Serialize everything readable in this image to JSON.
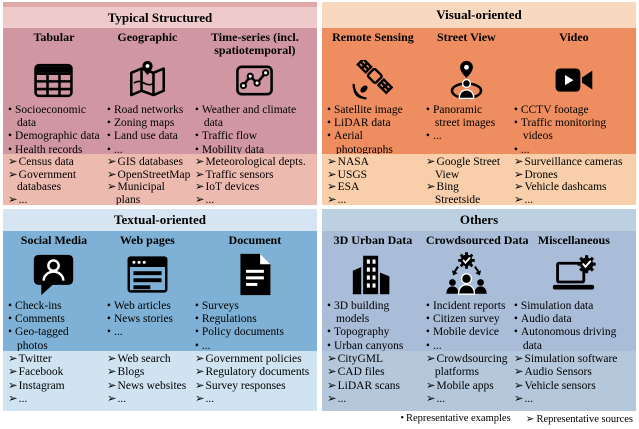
{
  "markers": {
    "example": "•",
    "source": "➢"
  },
  "legend": {
    "examples_label": "Representative examples",
    "sources_label": "Representative sources"
  },
  "quadrants": [
    {
      "id": "typical-structured",
      "title": "Typical Structured",
      "colors": {
        "header": "#eecaca",
        "header_top": "#dfa9a9",
        "body": "#d097a3",
        "sources": "#edbab0"
      },
      "columns": [
        {
          "title": "Tabular",
          "icon": "table-icon",
          "examples": [
            "Socioeconomic data",
            "Demographic data",
            "Health records",
            "..."
          ],
          "sources": [
            "Census data",
            "Government databases",
            "..."
          ]
        },
        {
          "title": "Geographic",
          "icon": "folded-map-icon",
          "examples": [
            "Road networks",
            "Zoning maps",
            "Land use data",
            "..."
          ],
          "sources": [
            "GIS databases",
            "OpenStreetMap",
            "Municipal plans",
            "..."
          ]
        },
        {
          "title": "Time-series (incl. spatiotemporal)",
          "icon": "line-chart-icon",
          "examples": [
            "Weather and climate data",
            "Traffic flow",
            "Mobility data",
            "..."
          ],
          "sources": [
            "Meteorological depts.",
            "Traffic sensors",
            "IoT devices",
            "..."
          ]
        }
      ]
    },
    {
      "id": "visual-oriented",
      "title": "Visual-oriented",
      "colors": {
        "header": "#f9d8c0",
        "body": "#ed8d60",
        "sources": "#f8cfaa"
      },
      "columns": [
        {
          "title": "Remote Sensing",
          "icon": "satellite-icon",
          "examples": [
            "Satellite image",
            "LiDAR data",
            "Aerial photographs",
            "..."
          ],
          "sources": [
            "NASA",
            "USGS",
            "ESA",
            "..."
          ]
        },
        {
          "title": "Street View",
          "icon": "street-view-pin-icon",
          "examples": [
            "Panoramic street images",
            "..."
          ],
          "sources": [
            "Google Street View",
            "Bing Streetside",
            "..."
          ]
        },
        {
          "title": "Video",
          "icon": "video-camera-icon",
          "examples": [
            "CCTV footage",
            "Traffic monitoring videos",
            "..."
          ],
          "sources": [
            "Surveillance cameras",
            "Drones",
            "Vehicle dashcams",
            "..."
          ]
        }
      ]
    },
    {
      "id": "textual-oriented",
      "title": "Textual-oriented",
      "colors": {
        "header": "#d6e5f1",
        "body": "#7eb1d5",
        "sources": "#cfe3f1"
      },
      "columns": [
        {
          "title": "Social Media",
          "icon": "chat-person-icon",
          "examples": [
            "Check-ins",
            "Comments",
            "Geo-tagged photos",
            "..."
          ],
          "sources": [
            "Twitter",
            "Facebook",
            "Instagram",
            "..."
          ]
        },
        {
          "title": "Web pages",
          "icon": "browser-window-icon",
          "examples": [
            "Web articles",
            "News stories",
            "..."
          ],
          "sources": [
            "Web search",
            "Blogs",
            "News websites",
            "..."
          ]
        },
        {
          "title": "Document",
          "icon": "document-icon",
          "examples": [
            "Surveys",
            "Regulations",
            "Policy documents",
            "..."
          ],
          "sources": [
            "Government policies",
            "Regulatory documents",
            "Survey responses",
            "..."
          ]
        }
      ]
    },
    {
      "id": "others",
      "title": "Others",
      "colors": {
        "header": "#bdd0e2",
        "body": "#a9bcd8",
        "sources": "#b4c7db"
      },
      "columns": [
        {
          "title": "3D Urban Data",
          "icon": "city-buildings-icon",
          "examples": [
            "3D building models",
            "Topography",
            "Urban canyons",
            "..."
          ],
          "sources": [
            "CityGML",
            "CAD files",
            "LiDAR scans",
            "..."
          ]
        },
        {
          "title": "Crowdsourced Data",
          "icon": "crowd-gear-icon",
          "examples": [
            "Incident reports",
            "Citizen survey",
            "Mobile device",
            "..."
          ],
          "sources": [
            "Crowdsourcing platforms",
            "Mobile apps",
            "..."
          ]
        },
        {
          "title": "Miscellaneous",
          "icon": "laptop-gear-icon",
          "examples": [
            "Simulation data",
            "Audio data",
            "Autonomous driving data",
            "..."
          ],
          "sources": [
            "Simulation software",
            "Audio Sensors",
            "Vehicle sensors",
            "..."
          ]
        }
      ]
    }
  ]
}
